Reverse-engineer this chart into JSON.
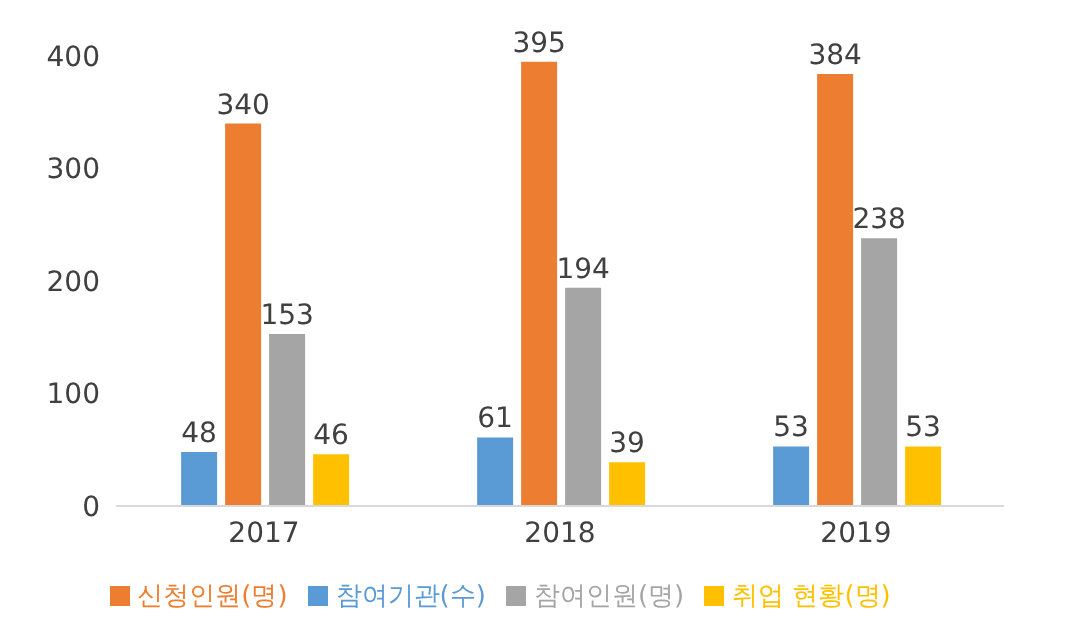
{
  "chart_data": {
    "type": "bar",
    "categories": [
      "2017",
      "2018",
      "2019"
    ],
    "series": [
      {
        "name": "참여기관(수)",
        "color": "#5b9bd5",
        "values": [
          48,
          61,
          53
        ]
      },
      {
        "name": "신청인원(명)",
        "color": "#ed7d31",
        "values": [
          340,
          395,
          384
        ]
      },
      {
        "name": "참여인원(명)",
        "color": "#a5a5a5",
        "values": [
          153,
          194,
          238
        ]
      },
      {
        "name": "취업 현황(명)",
        "color": "#ffc000",
        "values": [
          46,
          39,
          53
        ]
      }
    ],
    "ylim": [
      0,
      400
    ],
    "yticks": [
      0,
      100,
      200,
      300,
      400
    ],
    "data_labels": true,
    "legend": "bottom",
    "grid": false
  }
}
